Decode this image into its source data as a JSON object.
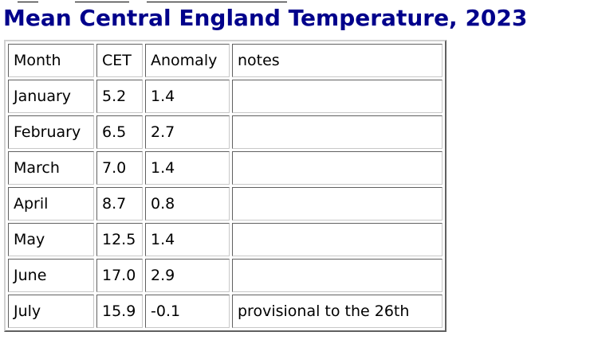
{
  "page": {
    "title": "Mean Central England Temperature, 2023"
  },
  "table": {
    "headers": [
      "Month",
      "CET",
      "Anomaly",
      "notes"
    ],
    "rows": [
      {
        "month": "January",
        "cet": "5.2",
        "anomaly": "1.4",
        "notes": ""
      },
      {
        "month": "February",
        "cet": "6.5",
        "anomaly": "2.7",
        "notes": ""
      },
      {
        "month": "March",
        "cet": "7.0",
        "anomaly": "1.4",
        "notes": ""
      },
      {
        "month": "April",
        "cet": "8.7",
        "anomaly": "0.8",
        "notes": ""
      },
      {
        "month": "May",
        "cet": "12.5",
        "anomaly": "1.4",
        "notes": ""
      },
      {
        "month": "June",
        "cet": "17.0",
        "anomaly": "2.9",
        "notes": ""
      },
      {
        "month": "July",
        "cet": "15.9",
        "anomaly": "-0.1",
        "notes": "provisional to the 26th"
      }
    ]
  },
  "colors": {
    "heading": "#00008b"
  }
}
